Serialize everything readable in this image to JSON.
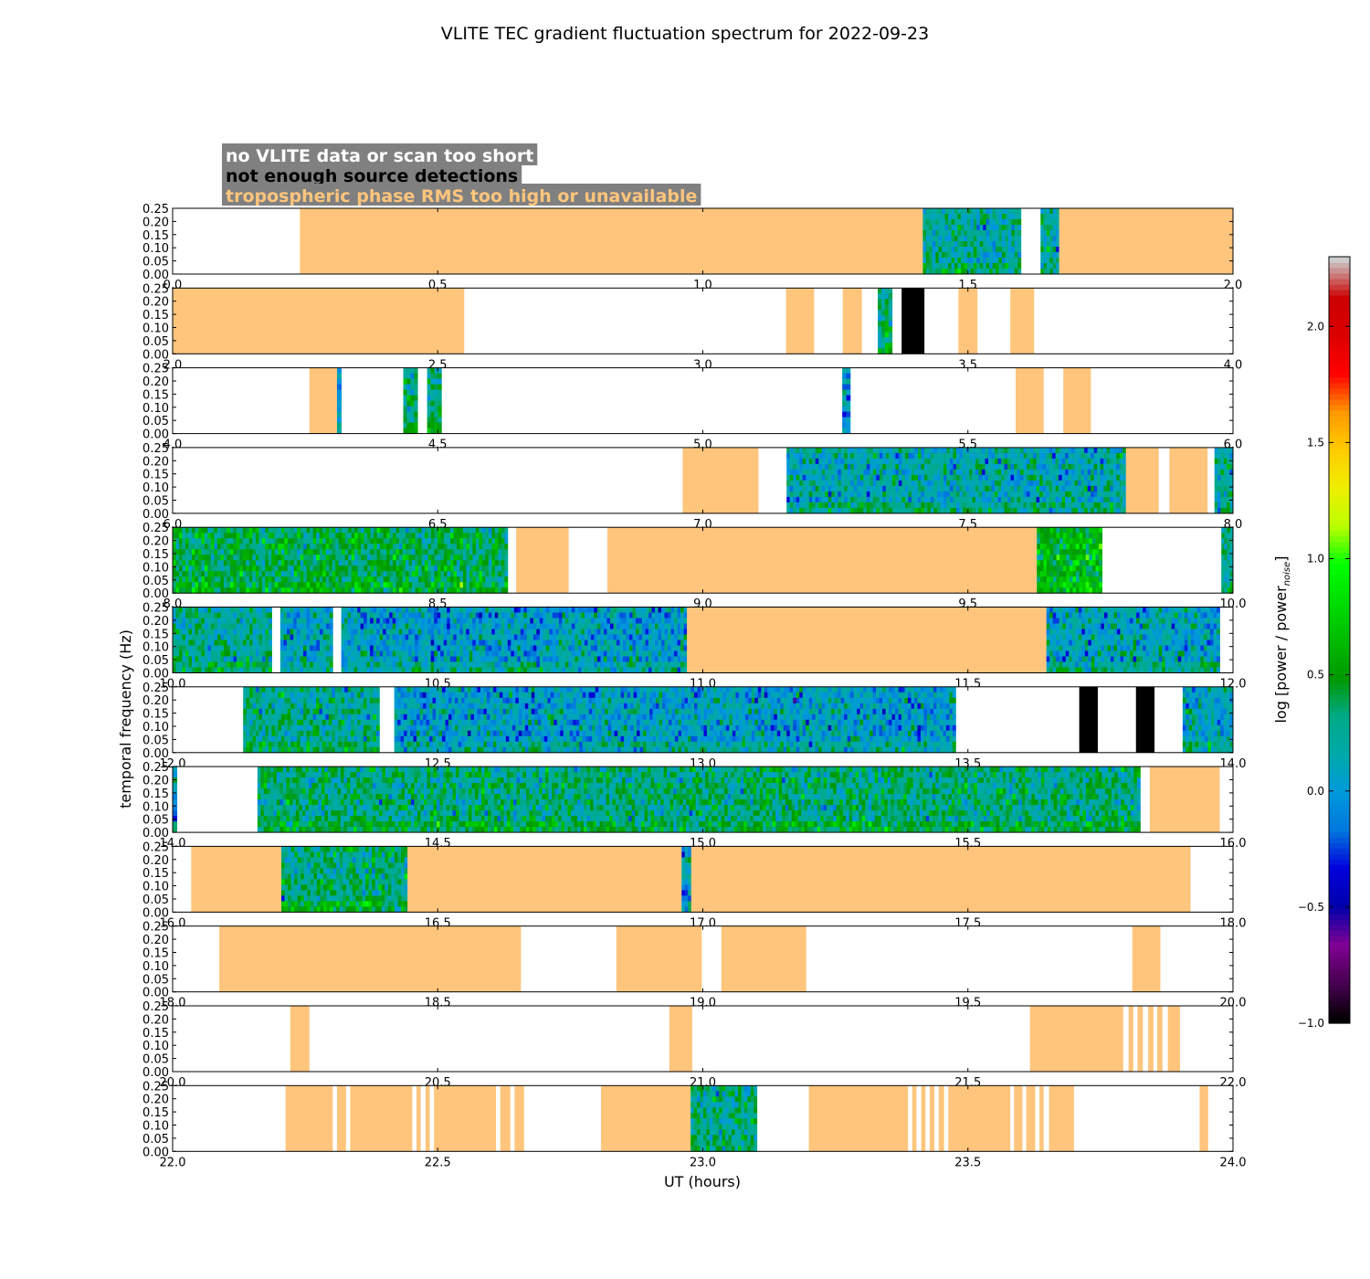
{
  "title": "VLITE TEC gradient fluctuation spectrum for 2022-09-23",
  "legend": [
    {
      "text": "no VLITE data or scan too short",
      "text_color": "#ffffff",
      "bg_color": "#808080"
    },
    {
      "text": "not enough source detections",
      "text_color": "#000000",
      "bg_color": "#808080"
    },
    {
      "text": "tropospheric phase RMS too high or unavailable",
      "text_color": "#ffc57c",
      "bg_color": "#808080"
    }
  ],
  "colors": {
    "tropo_flag": "#ffc57c",
    "no_detections": "#000000",
    "no_data": "#ffffff"
  },
  "chart_data": {
    "type": "heatmap",
    "title": "VLITE TEC gradient fluctuation spectrum for 2022-09-23",
    "xlabel": "UT (hours)",
    "ylabel": "temporal frequency (Hz)",
    "ylim": [
      0,
      0.25
    ],
    "yticks": [
      "0.00",
      "0.05",
      "0.10",
      "0.15",
      "0.20",
      "0.25"
    ],
    "colormap": "nipy_spectral",
    "colorbar": {
      "label": "log [power / power",
      "label_sub": "noise",
      "label_end": "]",
      "range": [
        -1.0,
        2.3
      ],
      "ticks": [
        -1.0,
        -0.5,
        0.0,
        0.5,
        1.0,
        1.5,
        2.0
      ],
      "tick_labels": [
        "−1.0",
        "−0.5",
        "0.0",
        "0.5",
        "1.0",
        "1.5",
        "2.0"
      ]
    },
    "panels": [
      {
        "xlim": [
          0.0,
          2.0
        ],
        "xticks": [
          "0.0",
          "0.5",
          "1.0",
          "1.5",
          "2.0"
        ],
        "segments": [
          {
            "type": "tropo",
            "start": 0.24,
            "end": 1.415
          },
          {
            "type": "spectrum",
            "start": 1.415,
            "end": 1.6,
            "level": 0.2
          },
          {
            "type": "spectrum",
            "start": 1.637,
            "end": 1.672,
            "level": 0.2
          },
          {
            "type": "tropo",
            "start": 1.672,
            "end": 2.0
          }
        ]
      },
      {
        "xlim": [
          2.0,
          4.0
        ],
        "xticks": [
          "2.0",
          "2.5",
          "3.0",
          "3.5",
          "4.0"
        ],
        "segments": [
          {
            "type": "tropo",
            "start": 2.0,
            "end": 2.55
          },
          {
            "type": "tropo",
            "start": 3.157,
            "end": 3.21
          },
          {
            "type": "tropo",
            "start": 3.264,
            "end": 3.3
          },
          {
            "type": "spectrum",
            "start": 3.33,
            "end": 3.357,
            "level": 0.3
          },
          {
            "type": "nodet",
            "start": 3.375,
            "end": 3.418
          },
          {
            "type": "tropo",
            "start": 3.482,
            "end": 3.518
          },
          {
            "type": "tropo",
            "start": 3.58,
            "end": 3.625
          }
        ]
      },
      {
        "xlim": [
          4.0,
          6.0
        ],
        "xticks": [
          "4.0",
          "4.5",
          "5.0",
          "5.5",
          "6.0"
        ],
        "segments": [
          {
            "type": "tropo",
            "start": 4.258,
            "end": 4.31
          },
          {
            "type": "spectrum",
            "start": 4.31,
            "end": 4.318,
            "level": 0.0
          },
          {
            "type": "spectrum",
            "start": 4.435,
            "end": 4.462,
            "level": 0.3
          },
          {
            "type": "spectrum",
            "start": 4.48,
            "end": 4.507,
            "level": 0.3
          },
          {
            "type": "spectrum",
            "start": 5.263,
            "end": 5.278,
            "level": 0.0
          },
          {
            "type": "tropo",
            "start": 5.59,
            "end": 5.643
          },
          {
            "type": "tropo",
            "start": 5.68,
            "end": 5.732
          }
        ]
      },
      {
        "xlim": [
          6.0,
          8.0
        ],
        "xticks": [
          "6.0",
          "6.5",
          "7.0",
          "7.5",
          "8.0"
        ],
        "segments": [
          {
            "type": "tropo",
            "start": 6.962,
            "end": 7.105
          },
          {
            "type": "spectrum",
            "start": 7.158,
            "end": 7.798,
            "level": 0.15
          },
          {
            "type": "tropo",
            "start": 7.798,
            "end": 7.86
          },
          {
            "type": "tropo",
            "start": 7.88,
            "end": 7.952
          },
          {
            "type": "spectrum",
            "start": 7.965,
            "end": 8.0,
            "level": 0.2
          }
        ]
      },
      {
        "xlim": [
          8.0,
          10.0
        ],
        "xticks": [
          "8.0",
          "8.5",
          "9.0",
          "9.5",
          "10.0"
        ],
        "segments": [
          {
            "type": "spectrum",
            "start": 8.0,
            "end": 8.632,
            "level": 0.4
          },
          {
            "type": "tropo",
            "start": 8.648,
            "end": 8.747
          },
          {
            "type": "tropo",
            "start": 8.82,
            "end": 9.63
          },
          {
            "type": "spectrum",
            "start": 9.63,
            "end": 9.753,
            "level": 0.55
          },
          {
            "type": "spectrum",
            "start": 9.978,
            "end": 10.0,
            "level": 0.2
          }
        ]
      },
      {
        "xlim": [
          10.0,
          12.0
        ],
        "xticks": [
          "10.0",
          "10.5",
          "11.0",
          "11.5",
          "12.0"
        ],
        "segments": [
          {
            "type": "spectrum",
            "start": 10.0,
            "end": 10.187,
            "level": 0.25
          },
          {
            "type": "spectrum",
            "start": 10.203,
            "end": 10.302,
            "level": 0.1
          },
          {
            "type": "spectrum",
            "start": 10.318,
            "end": 10.97,
            "level": 0.05
          },
          {
            "type": "tropo",
            "start": 10.97,
            "end": 11.648
          },
          {
            "type": "spectrum",
            "start": 11.648,
            "end": 11.975,
            "level": 0.1
          }
        ]
      },
      {
        "xlim": [
          12.0,
          14.0
        ],
        "xticks": [
          "12.0",
          "12.5",
          "13.0",
          "13.5",
          "14.0"
        ],
        "segments": [
          {
            "type": "spectrum",
            "start": 12.133,
            "end": 12.39,
            "level": 0.25
          },
          {
            "type": "spectrum",
            "start": 12.418,
            "end": 13.477,
            "level": 0.05
          },
          {
            "type": "nodet",
            "start": 13.71,
            "end": 13.745
          },
          {
            "type": "nodet",
            "start": 13.817,
            "end": 13.852
          },
          {
            "type": "spectrum",
            "start": 13.905,
            "end": 14.0,
            "level": 0.1
          }
        ]
      },
      {
        "xlim": [
          14.0,
          16.0
        ],
        "xticks": [
          "14.0",
          "14.5",
          "15.0",
          "15.5",
          "16.0"
        ],
        "segments": [
          {
            "type": "spectrum",
            "start": 14.0,
            "end": 14.008,
            "level": 0.0
          },
          {
            "type": "spectrum",
            "start": 14.16,
            "end": 15.825,
            "level": 0.3
          },
          {
            "type": "tropo",
            "start": 15.843,
            "end": 15.975
          }
        ]
      },
      {
        "xlim": [
          16.0,
          18.0
        ],
        "xticks": [
          "16.0",
          "16.5",
          "17.0",
          "17.5",
          "18.0"
        ],
        "segments": [
          {
            "type": "tropo",
            "start": 16.035,
            "end": 16.205
          },
          {
            "type": "spectrum",
            "start": 16.205,
            "end": 16.443,
            "level": 0.3
          },
          {
            "type": "tropo",
            "start": 16.443,
            "end": 16.96
          },
          {
            "type": "spectrum",
            "start": 16.96,
            "end": 16.978,
            "level": 0.0
          },
          {
            "type": "tropo",
            "start": 16.978,
            "end": 17.92
          }
        ]
      },
      {
        "xlim": [
          18.0,
          20.0
        ],
        "xticks": [
          "18.0",
          "18.5",
          "19.0",
          "19.5",
          "20.0"
        ],
        "segments": [
          {
            "type": "tropo",
            "start": 18.088,
            "end": 18.657
          },
          {
            "type": "tropo",
            "start": 18.837,
            "end": 18.998
          },
          {
            "type": "tropo",
            "start": 19.035,
            "end": 19.195
          },
          {
            "type": "tropo",
            "start": 19.81,
            "end": 19.863
          }
        ]
      },
      {
        "xlim": [
          20.0,
          22.0
        ],
        "xticks": [
          "20.0",
          "20.5",
          "21.0",
          "21.5",
          "22.0"
        ],
        "segments": [
          {
            "type": "tropo",
            "start": 20.222,
            "end": 20.258
          },
          {
            "type": "tropo",
            "start": 20.937,
            "end": 20.98
          },
          {
            "type": "tropo",
            "start": 21.617,
            "end": 21.793
          },
          {
            "type": "tropo",
            "start": 21.803,
            "end": 21.812
          },
          {
            "type": "tropo",
            "start": 21.82,
            "end": 21.83
          },
          {
            "type": "tropo",
            "start": 21.84,
            "end": 21.85
          },
          {
            "type": "tropo",
            "start": 21.857,
            "end": 21.867
          },
          {
            "type": "tropo",
            "start": 21.877,
            "end": 21.9
          }
        ]
      },
      {
        "xlim": [
          22.0,
          24.0
        ],
        "xticks": [
          "22.0",
          "22.5",
          "23.0",
          "23.5",
          "24.0"
        ],
        "segments": [
          {
            "type": "tropo",
            "start": 22.213,
            "end": 22.302
          },
          {
            "type": "tropo",
            "start": 22.31,
            "end": 22.327
          },
          {
            "type": "tropo",
            "start": 22.335,
            "end": 22.452
          },
          {
            "type": "tropo",
            "start": 22.46,
            "end": 22.468
          },
          {
            "type": "tropo",
            "start": 22.477,
            "end": 22.485
          },
          {
            "type": "tropo",
            "start": 22.493,
            "end": 22.61
          },
          {
            "type": "tropo",
            "start": 22.618,
            "end": 22.637
          },
          {
            "type": "tropo",
            "start": 22.645,
            "end": 22.663
          },
          {
            "type": "tropo",
            "start": 22.808,
            "end": 22.977
          },
          {
            "type": "spectrum",
            "start": 22.977,
            "end": 23.102,
            "level": 0.25
          },
          {
            "type": "tropo",
            "start": 23.2,
            "end": 23.387
          },
          {
            "type": "tropo",
            "start": 23.395,
            "end": 23.403
          },
          {
            "type": "tropo",
            "start": 23.412,
            "end": 23.42
          },
          {
            "type": "tropo",
            "start": 23.428,
            "end": 23.437
          },
          {
            "type": "tropo",
            "start": 23.445,
            "end": 23.455
          },
          {
            "type": "tropo",
            "start": 23.463,
            "end": 23.58
          },
          {
            "type": "tropo",
            "start": 23.587,
            "end": 23.603
          },
          {
            "type": "tropo",
            "start": 23.61,
            "end": 23.627
          },
          {
            "type": "tropo",
            "start": 23.635,
            "end": 23.643
          },
          {
            "type": "tropo",
            "start": 23.653,
            "end": 23.7
          },
          {
            "type": "tropo",
            "start": 23.937,
            "end": 23.953
          }
        ]
      }
    ]
  }
}
